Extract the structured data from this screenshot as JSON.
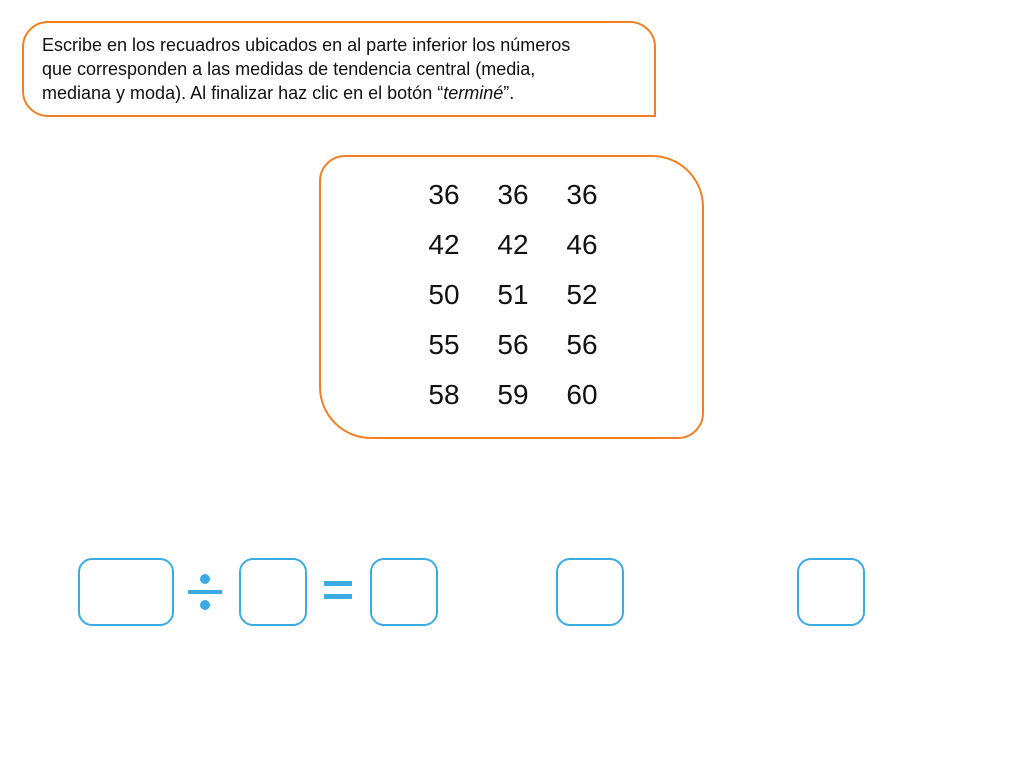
{
  "instructions": {
    "line1": "Escribe en los recuadros ubicados en al parte inferior los números",
    "line2": "que corresponden a las medidas de tendencia central (media,",
    "line3_prefix": "mediana y moda). Al finalizar haz clic en el botón “",
    "line3_emph": "terminé",
    "line3_suffix": "”."
  },
  "data_rows": [
    [
      "36",
      "36",
      "36"
    ],
    [
      "42",
      "42",
      "46"
    ],
    [
      "50",
      "51",
      "52"
    ],
    [
      "55",
      "56",
      "56"
    ],
    [
      "58",
      "59",
      "60"
    ]
  ],
  "operators": {
    "divide": "divide-icon",
    "equals": "equals-icon"
  },
  "answers": {
    "sum": "",
    "count": "",
    "mean": "",
    "median": "",
    "mode": ""
  },
  "colors": {
    "orange": "#f28022",
    "blue": "#3aabe3",
    "text": "#111111"
  }
}
